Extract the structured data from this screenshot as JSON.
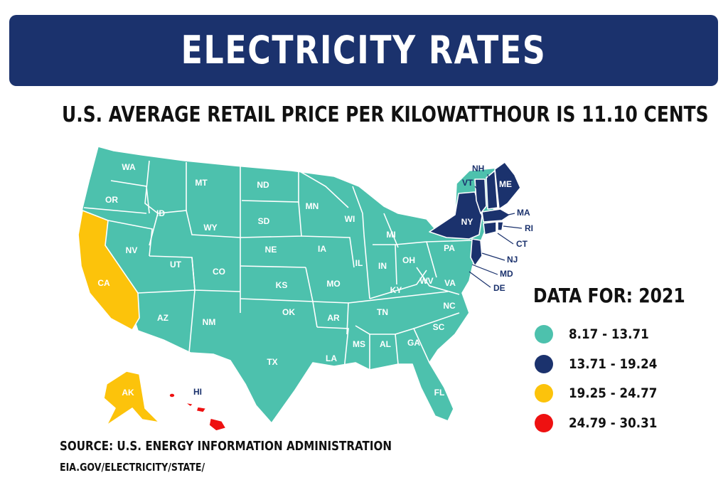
{
  "header": {
    "title": "ELECTRICITY RATES",
    "subtitle": "U.S. AVERAGE RETAIL PRICE PER KILOWATTHOUR IS 11.10 CENTS"
  },
  "colors": {
    "banner": "#1b326d",
    "tier1": "#4dc1ad",
    "tier2": "#1b326d",
    "tier3": "#fcc30b",
    "tier4": "#ee1111",
    "border": "#ffffff"
  },
  "legend": {
    "title": "DATA FOR: 2021",
    "items": [
      {
        "range": "8.17 - 13.71",
        "color": "#4dc1ad"
      },
      {
        "range": "13.71 - 19.24",
        "color": "#1b326d"
      },
      {
        "range": "19.25 - 24.77",
        "color": "#fcc30b"
      },
      {
        "range": "24.79 - 30.31",
        "color": "#ee1111"
      }
    ]
  },
  "states": {
    "WA": "WA",
    "OR": "OR",
    "CA": "CA",
    "NV": "NV",
    "ID": "ID",
    "MT": "MT",
    "WY": "WY",
    "UT": "UT",
    "AZ": "AZ",
    "CO": "CO",
    "NM": "NM",
    "ND": "ND",
    "SD": "SD",
    "NE": "NE",
    "KS": "KS",
    "OK": "OK",
    "TX": "TX",
    "MN": "MN",
    "IA": "IA",
    "MO": "MO",
    "AR": "AR",
    "LA": "LA",
    "WI": "WI",
    "IL": "IL",
    "MS": "MS",
    "MI": "MI",
    "IN": "IN",
    "KY": "KY",
    "TN": "TN",
    "AL": "AL",
    "OH": "OH",
    "WV": "WV",
    "VA": "VA",
    "NC": "NC",
    "SC": "SC",
    "GA": "GA",
    "FL": "FL",
    "PA": "PA",
    "NY": "NY",
    "VT": "VT",
    "NH": "NH",
    "ME": "ME",
    "MA": "MA",
    "RI": "RI",
    "CT": "CT",
    "NJ": "NJ",
    "MD": "MD",
    "DE": "DE",
    "AK": "AK",
    "HI": "HI"
  },
  "source": {
    "line1": "SOURCE: U.S. ENERGY INFORMATION ADMINISTRATION",
    "line2": "EIA.GOV/ELECTRICITY/STATE/"
  }
}
